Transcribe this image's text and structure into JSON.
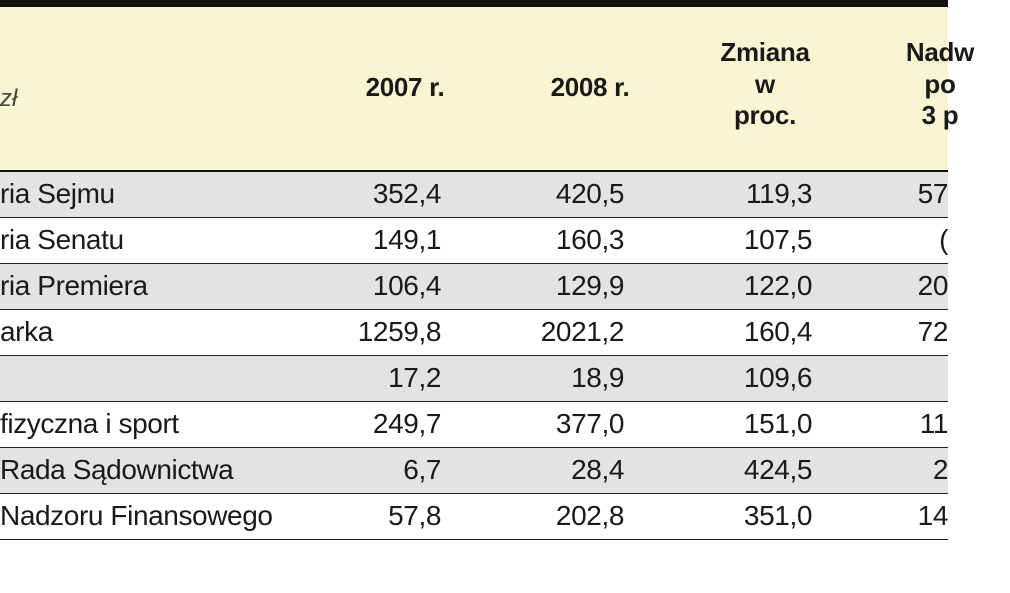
{
  "header": {
    "unit": "zł",
    "col_2007": "2007 r.",
    "col_2008": "2008 r.",
    "col_zmiana": "Zmiana\nw\nproc.",
    "col_nadwyzka": "Nadw\npo\n3 p"
  },
  "rows": [
    {
      "name": "ria Sejmu",
      "v2007": "352,4",
      "v2008": "420,5",
      "zmiana": "119,3",
      "nadwyzka": "57"
    },
    {
      "name": "ria Senatu",
      "v2007": "149,1",
      "v2008": "160,3",
      "zmiana": "107,5",
      "nadwyzka": "("
    },
    {
      "name": "ria Premiera",
      "v2007": "106,4",
      "v2008": "129,9",
      "zmiana": "122,0",
      "nadwyzka": "20"
    },
    {
      "name": "arka",
      "v2007": "1259,8",
      "v2008": "2021,2",
      "zmiana": "160,4",
      "nadwyzka": "72"
    },
    {
      "name": "",
      "v2007": "17,2",
      "v2008": "18,9",
      "zmiana": "109,6",
      "nadwyzka": ""
    },
    {
      "name": "fizyczna i sport",
      "v2007": "249,7",
      "v2008": "377,0",
      "zmiana": "151,0",
      "nadwyzka": "11"
    },
    {
      "name": " Rada Sądownictwa",
      "v2007": "6,7",
      "v2008": "28,4",
      "zmiana": "424,5",
      "nadwyzka": "2"
    },
    {
      "name": " Nadzoru Finansowego",
      "v2007": "57,8",
      "v2008": "202,8",
      "zmiana": "351,0",
      "nadwyzka": "14"
    }
  ]
}
